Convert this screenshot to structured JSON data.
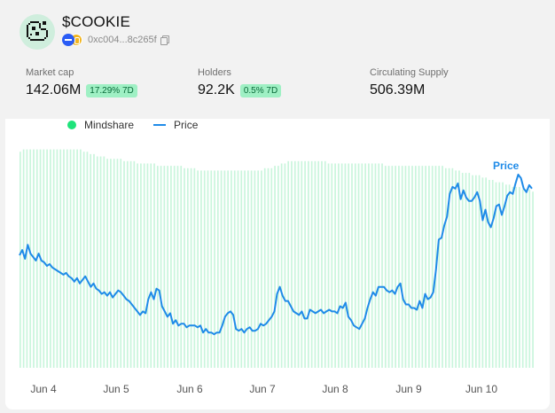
{
  "token": {
    "ticker": "$COOKIE",
    "address": "0xc004...8c265f",
    "logo_icon": "cookie-icon",
    "chain_icons": [
      "base-chain-icon",
      "eth-chain-icon"
    ]
  },
  "stats": [
    {
      "label": "Market cap",
      "value": "142.06M",
      "badge": "17.29% 7D"
    },
    {
      "label": "Holders",
      "value": "92.2K",
      "badge": "0.5% 7D"
    },
    {
      "label": "Circulating Supply",
      "value": "506.39M",
      "badge": null
    }
  ],
  "colors": {
    "mindshare": "#c9f5dc",
    "mindshare_legend": "#1ee37a",
    "price": "#1f8be8",
    "badge_bg": "#9ff0c4",
    "badge_text": "#0a6b3a"
  },
  "chart_data": {
    "type": "bar",
    "legend": [
      "Mindshare",
      "Price"
    ],
    "legend_placement": "top-left",
    "annotation": "Price",
    "x_ticks": [
      "Jun 4",
      "Jun 5",
      "Jun 6",
      "Jun 7",
      "Jun 8",
      "Jun 9",
      "Jun 10"
    ],
    "series": [
      {
        "name": "Mindshare",
        "type": "bar",
        "values": [
          0.92,
          0.93,
          0.93,
          0.93,
          0.93,
          0.93,
          0.93,
          0.93,
          0.93,
          0.93,
          0.93,
          0.93,
          0.93,
          0.93,
          0.93,
          0.93,
          0.93,
          0.93,
          0.93,
          0.92,
          0.92,
          0.91,
          0.91,
          0.9,
          0.9,
          0.9,
          0.89,
          0.89,
          0.89,
          0.89,
          0.89,
          0.88,
          0.88,
          0.88,
          0.88,
          0.87,
          0.87,
          0.87,
          0.87,
          0.87,
          0.87,
          0.86,
          0.86,
          0.86,
          0.86,
          0.86,
          0.86,
          0.86,
          0.86,
          0.85,
          0.85,
          0.85,
          0.85,
          0.84,
          0.84,
          0.84,
          0.84,
          0.84,
          0.84,
          0.84,
          0.84,
          0.84,
          0.84,
          0.84,
          0.84,
          0.84,
          0.84,
          0.84,
          0.84,
          0.84,
          0.84,
          0.84,
          0.84,
          0.85,
          0.85,
          0.85,
          0.86,
          0.86,
          0.87,
          0.87,
          0.88,
          0.88,
          0.88,
          0.88,
          0.88,
          0.88,
          0.88,
          0.88,
          0.88,
          0.88,
          0.88,
          0.88,
          0.87,
          0.87,
          0.87,
          0.87,
          0.87,
          0.87,
          0.87,
          0.87,
          0.87,
          0.87,
          0.87,
          0.87,
          0.87,
          0.87,
          0.87,
          0.87,
          0.87,
          0.86,
          0.86,
          0.86,
          0.86,
          0.86,
          0.86,
          0.86,
          0.86,
          0.86,
          0.86,
          0.86,
          0.86,
          0.86,
          0.86,
          0.86,
          0.86,
          0.86,
          0.86,
          0.85,
          0.85,
          0.85,
          0.84,
          0.84,
          0.83,
          0.83,
          0.83,
          0.82,
          0.82,
          0.82,
          0.81,
          0.81,
          0.8,
          0.8,
          0.79,
          0.79,
          0.79,
          0.78,
          0.78,
          0.77,
          0.77,
          0.77,
          0.76,
          0.76,
          0.76,
          0.75
        ]
      },
      {
        "name": "Price",
        "type": "line",
        "values": [
          0.54,
          0.57,
          0.52,
          0.6,
          0.55,
          0.53,
          0.51,
          0.55,
          0.51,
          0.5,
          0.48,
          0.49,
          0.47,
          0.46,
          0.45,
          0.44,
          0.43,
          0.44,
          0.42,
          0.41,
          0.39,
          0.41,
          0.38,
          0.4,
          0.42,
          0.39,
          0.36,
          0.38,
          0.35,
          0.34,
          0.32,
          0.33,
          0.31,
          0.33,
          0.3,
          0.32,
          0.34,
          0.33,
          0.31,
          0.29,
          0.28,
          0.26,
          0.24,
          0.22,
          0.2,
          0.22,
          0.21,
          0.29,
          0.33,
          0.29,
          0.35,
          0.34,
          0.25,
          0.22,
          0.19,
          0.21,
          0.15,
          0.17,
          0.14,
          0.15,
          0.15,
          0.13,
          0.14,
          0.14,
          0.14,
          0.13,
          0.14,
          0.1,
          0.12,
          0.1,
          0.1,
          0.09,
          0.1,
          0.1,
          0.14,
          0.19,
          0.21,
          0.22,
          0.2,
          0.12,
          0.11,
          0.12,
          0.1,
          0.12,
          0.13,
          0.11,
          0.11,
          0.12,
          0.15,
          0.14,
          0.15,
          0.17,
          0.19,
          0.22,
          0.32,
          0.36,
          0.31,
          0.28,
          0.28,
          0.25,
          0.22,
          0.21,
          0.2,
          0.22,
          0.18,
          0.18,
          0.23,
          0.22,
          0.21,
          0.22,
          0.23,
          0.21,
          0.22,
          0.23,
          0.22,
          0.22,
          0.21,
          0.25,
          0.24,
          0.27,
          0.19,
          0.17,
          0.14,
          0.13,
          0.12,
          0.15,
          0.18,
          0.24,
          0.29,
          0.33,
          0.31,
          0.36,
          0.36,
          0.36,
          0.34,
          0.33,
          0.34,
          0.32,
          0.36,
          0.38,
          0.29,
          0.26,
          0.26,
          0.24,
          0.24,
          0.23,
          0.28,
          0.24,
          0.32,
          0.29,
          0.3,
          0.33,
          0.46,
          0.63,
          0.64,
          0.71,
          0.76,
          0.89,
          0.93,
          0.92,
          0.95,
          0.86,
          0.91,
          0.87,
          0.85,
          0.85,
          0.87,
          0.9,
          0.85,
          0.74,
          0.8,
          0.73,
          0.7,
          0.75,
          0.82,
          0.83,
          0.77,
          0.82,
          0.88,
          0.9,
          0.89,
          0.95,
          1.0,
          0.98,
          0.92,
          0.9,
          0.94,
          0.92
        ]
      }
    ],
    "xlabel": "",
    "ylabel": "",
    "grid": false
  }
}
